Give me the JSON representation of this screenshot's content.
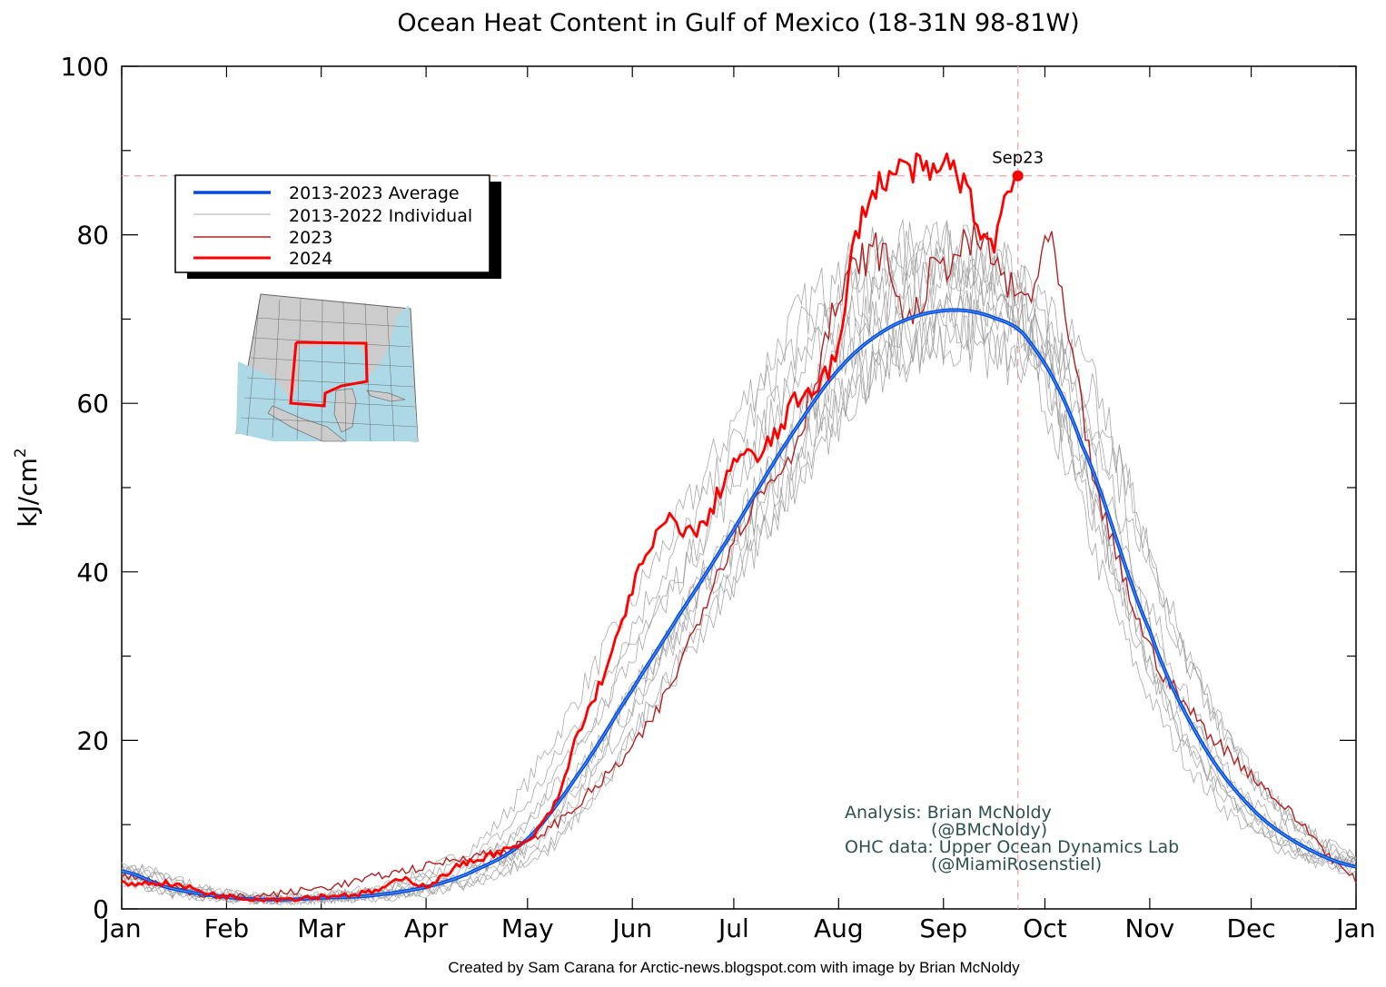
{
  "chart_data": {
    "type": "line",
    "title": "Ocean Heat Content in Gulf of Mexico (18-31N 98-81W)",
    "xlabel": "",
    "ylabel": "kJ/cm",
    "ylabel_sup": "2",
    "ylim": [
      0,
      100
    ],
    "yticks": [
      "0",
      "20",
      "40",
      "60",
      "80",
      "100"
    ],
    "xlim": [
      1,
      366
    ],
    "x_unit": "day of year",
    "month_ticks": [
      "Jan",
      "Feb",
      "Mar",
      "Apr",
      "May",
      "Jun",
      "Jul",
      "Aug",
      "Sep",
      "Oct",
      "Nov",
      "Dec",
      "Jan"
    ],
    "grid": false,
    "legend_position": "upper-left",
    "legend": [
      "2013-2023 Average",
      "2013-2022 Individual",
      "2023",
      "2024"
    ],
    "colors": {
      "average": "#0a4ad8",
      "individual": "#9a9a9a",
      "y2023": "#b22222",
      "y2024": "#ff0000",
      "crosshair": "#f4a4a4"
    },
    "current_marker": {
      "label": "Sep23",
      "day": 266,
      "value": 87
    },
    "series": [
      {
        "name": "2013-2023 Average",
        "x": [
          1,
          15,
          32,
          46,
          60,
          75,
          91,
          105,
          121,
          136,
          152,
          166,
          182,
          197,
          213,
          228,
          244,
          258,
          270,
          285,
          305,
          320,
          335,
          350,
          366
        ],
        "values": [
          4.5,
          2.5,
          1.4,
          1.1,
          1.3,
          1.6,
          2.6,
          4.5,
          8.3,
          16,
          26,
          35,
          45,
          55,
          64,
          69,
          71,
          70.3,
          67,
          55,
          33,
          20,
          12,
          7.5,
          5
        ]
      },
      {
        "name": "2023",
        "x": [
          1,
          30,
          60,
          91,
          100,
          121,
          140,
          160,
          182,
          200,
          213,
          225,
          234,
          240,
          255,
          265,
          270,
          275,
          282,
          290,
          305,
          320,
          335,
          350,
          366
        ],
        "values": [
          4,
          1.5,
          2.5,
          5,
          6,
          8,
          14,
          24,
          44,
          55,
          72,
          78,
          70,
          75,
          79,
          73,
          73,
          79,
          65,
          48,
          31,
          22,
          16,
          10,
          3.5
        ]
      },
      {
        "name": "2024",
        "x": [
          1,
          15,
          30,
          46,
          60,
          75,
          85,
          91,
          100,
          115,
          121,
          130,
          135,
          146,
          152,
          158,
          162,
          172,
          182,
          190,
          200,
          213,
          218,
          225,
          234,
          240,
          247,
          258,
          262,
          266
        ],
        "values": [
          3,
          3,
          1.6,
          1.2,
          1.5,
          2,
          3.5,
          2.8,
          5,
          7,
          8,
          13,
          20,
          30,
          38,
          43,
          46,
          45,
          53,
          54,
          60,
          66,
          80,
          86,
          88,
          87,
          88,
          79,
          84,
          87
        ]
      }
    ]
  },
  "legend_items": {
    "average": "2013-2023 Average",
    "individual": "2013-2022 Individual",
    "y2023": "2023",
    "y2024": "2024"
  },
  "credits": {
    "analysis": "Analysis: Brian McNoldy",
    "analysis_handle": "(@BMcNoldy)",
    "data": "OHC data: Upper Ocean Dynamics Lab",
    "data_handle": "(@MiamiRosenstiel)"
  },
  "footer": "Created by Sam Carana for Arctic-news.blogspot.com with image by Brian McNoldy"
}
